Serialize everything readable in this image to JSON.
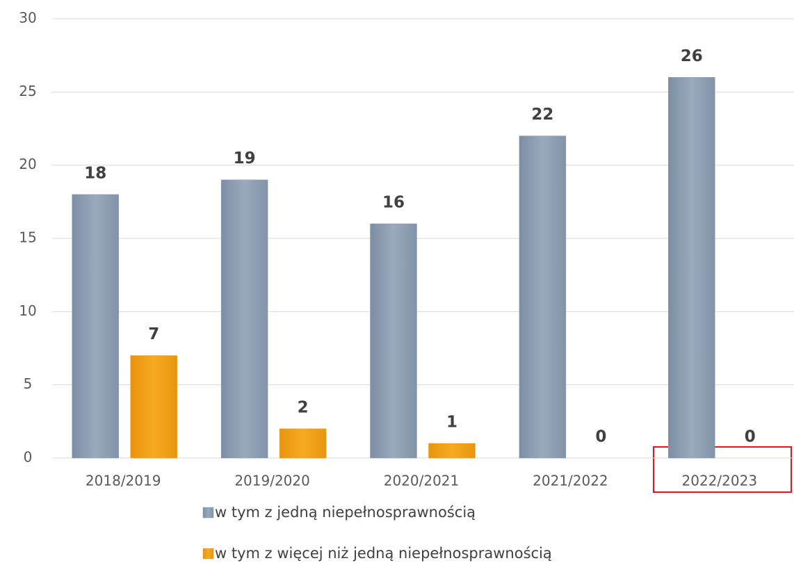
{
  "chart_data": {
    "type": "bar",
    "categories": [
      "2018/2019",
      "2019/2020",
      "2020/2021",
      "2021/2022",
      "2022/2023"
    ],
    "series": [
      {
        "name": "w tym z jedną niepełnosprawnością",
        "color": "#8c9db2",
        "values": [
          18,
          19,
          16,
          22,
          26
        ]
      },
      {
        "name": "w tym z więcej niż jedną niepełnosprawnością",
        "color": "#f0a01e",
        "values": [
          7,
          2,
          1,
          0,
          0
        ]
      }
    ],
    "ylim": [
      0,
      30
    ],
    "yticks": [
      0,
      5,
      10,
      15,
      20,
      25,
      30
    ],
    "grid": true
  }
}
